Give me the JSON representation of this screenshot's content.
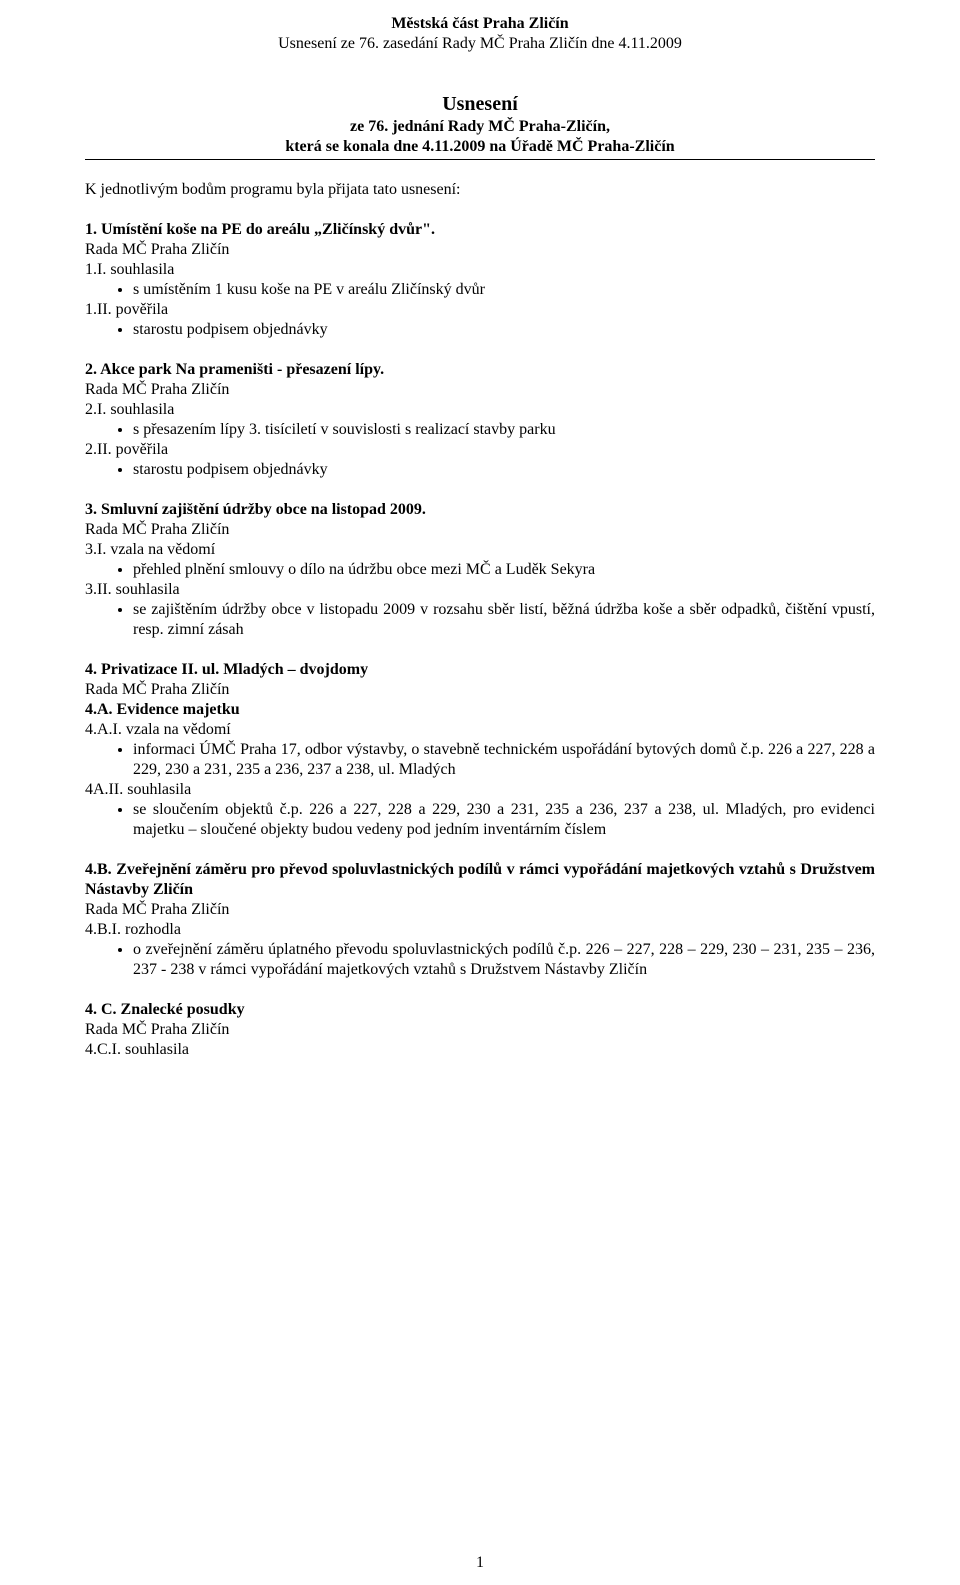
{
  "header": {
    "line1": "Městská část Praha Zličín",
    "line2": "Usnesení ze 76. zasedání Rady MČ Praha Zličín dne 4.11.2009"
  },
  "title": {
    "main": "Usnesení",
    "sub1": "ze 76. jednání Rady MČ Praha-Zličín,",
    "sub2": "která se konala dne 4.11.2009 na Úřadě MČ Praha-Zličín"
  },
  "intro": "K jednotlivým bodům programu byla přijata tato usnesení:",
  "items": {
    "i1": {
      "title": "1. Umístění koše na PE do areálu „Zličínský dvůr\".",
      "rada": "Rada MČ Praha Zličín",
      "s1_label": "1.I. souhlasila",
      "s1_bullet": "s umístěním 1 kusu koše na PE v areálu Zličínský dvůr",
      "s2_label": "1.II. pověřila",
      "s2_bullet": "starostu podpisem objednávky"
    },
    "i2": {
      "title": "2. Akce park Na prameništi - přesazení lípy.",
      "rada": "Rada MČ Praha Zličín",
      "s1_label": "2.I. souhlasila",
      "s1_bullet": "s přesazením lípy  3. tisíciletí v souvislosti s realizací stavby parku",
      "s2_label": "2.II. pověřila",
      "s2_bullet": "starostu podpisem objednávky"
    },
    "i3": {
      "title": "3. Smluvní zajištění údržby obce na listopad 2009.",
      "rada": "Rada MČ Praha Zličín",
      "s1_label": "3.I. vzala na vědomí",
      "s1_bullet": "přehled plnění smlouvy o dílo na údržbu obce mezi MČ a Luděk Sekyra",
      "s2_label": "3.II. souhlasila",
      "s2_bullet": "se zajištěním údržby obce v listopadu 2009 v rozsahu sběr listí, běžná údržba koše a sběr odpadků, čištění vpustí, resp. zimní zásah"
    },
    "i4": {
      "title": "4. Privatizace II.  ul. Mladých – dvojdomy",
      "rada": "Rada MČ Praha Zličín",
      "A": {
        "title": "4.A.  Evidence majetku",
        "s1_label": "4.A.I. vzala na vědomí",
        "s1_bullet": "informaci ÚMČ Praha 17, odbor výstavby, o stavebně technickém uspořádání bytových domů č.p. 226 a 227, 228 a 229,  230 a 231, 235 a 236, 237 a 238, ul. Mladých",
        "s2_label": "4A.II. souhlasila",
        "s2_bullet": "se sloučením objektů č.p. 226 a 227, 228 a 229, 230 a 231, 235 a 236, 237 a 238, ul. Mladých, pro evidenci majetku – sloučené objekty budou vedeny pod jedním inventárním číslem"
      },
      "B": {
        "title": "4.B. Zveřejnění záměru pro převod spoluvlastnických podílů v rámci vypořádání majetkových vztahů s Družstvem Nástavby Zličín",
        "rada": "Rada MČ Praha Zličín",
        "s1_label": "4.B.I. rozhodla",
        "s1_bullet": "o zveřejnění záměru úplatného převodu spoluvlastnických podílů č.p. 226 – 227, 228 – 229, 230 – 231, 235 – 236, 237 - 238 v rámci vypořádání majetkových vztahů s Družstvem Nástavby Zličín"
      },
      "C": {
        "title": "4. C. Znalecké posudky",
        "rada": "Rada MČ Praha Zličín",
        "s1_label": "4.C.I. souhlasila"
      }
    }
  },
  "pageNumber": "1"
}
